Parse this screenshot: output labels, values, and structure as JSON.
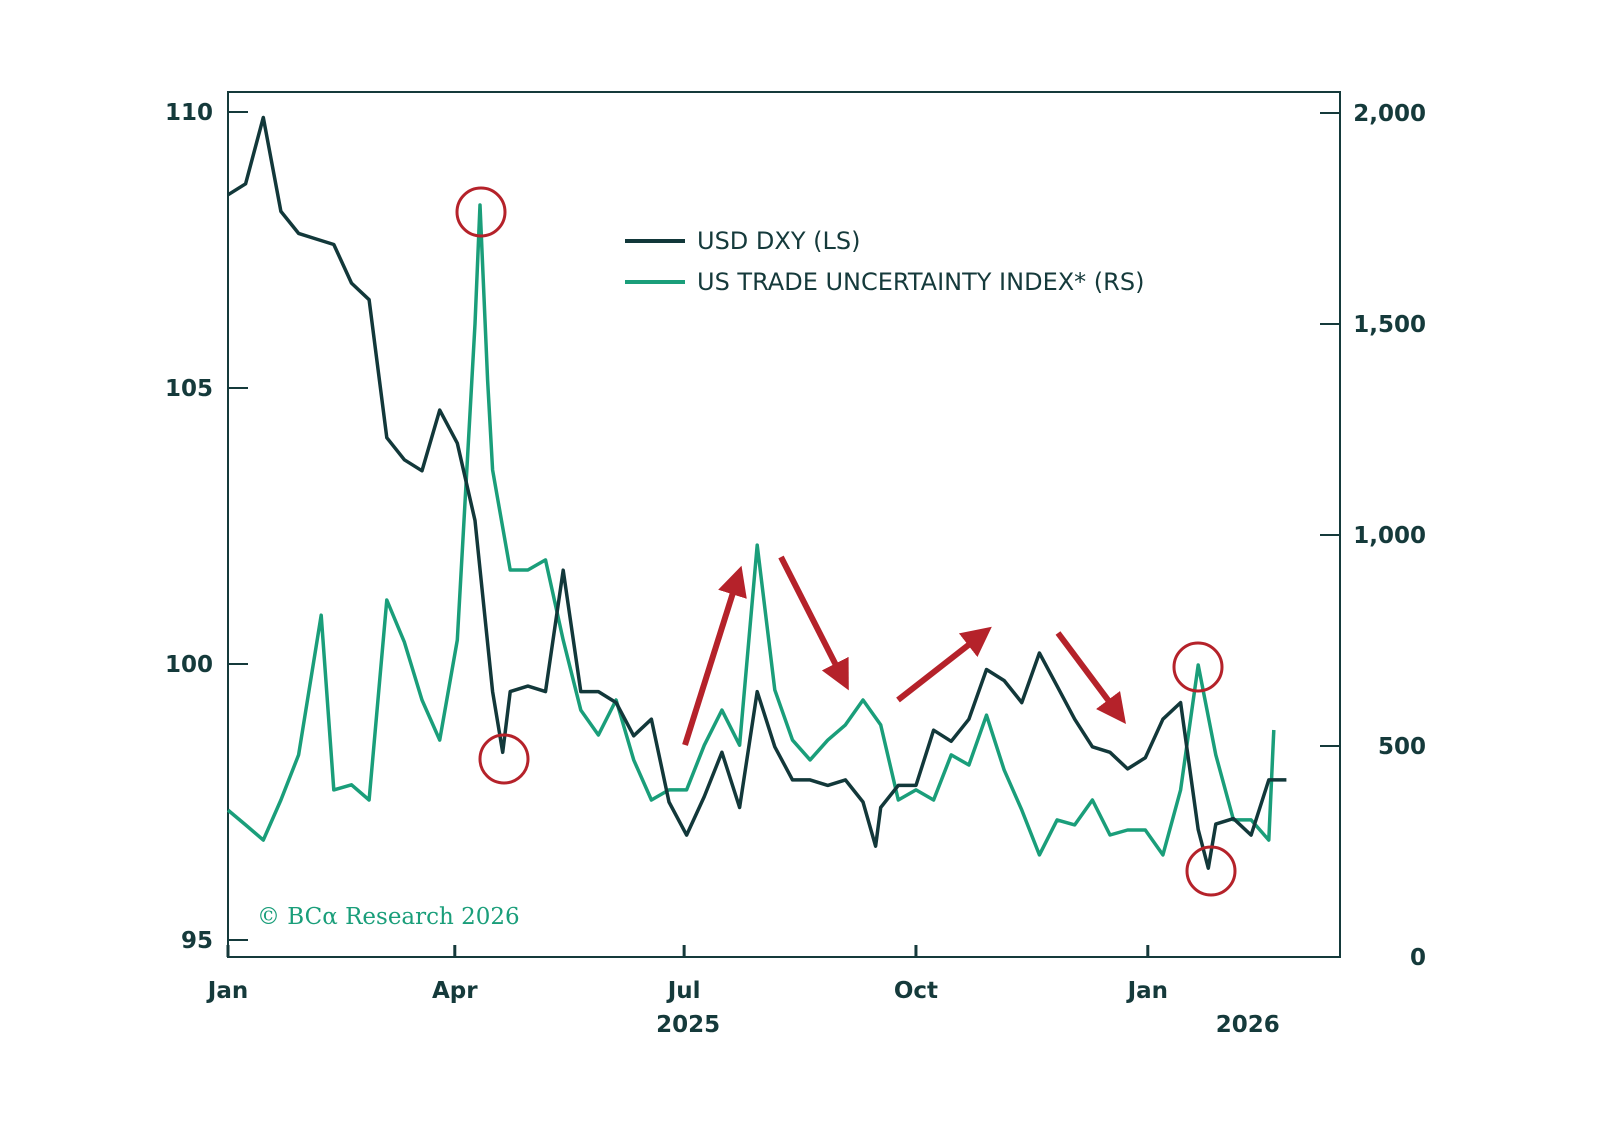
{
  "chart_data": {
    "type": "line",
    "colors": {
      "dxy": "#12383a",
      "trade": "#1a9e7a",
      "annotation": "#b5222a",
      "axis": "#153a3b"
    },
    "legend": {
      "placement": "top-center",
      "entries": [
        "USD DXY (LS)",
        "US TRADE UNCERTAINTY INDEX* (RS)"
      ]
    },
    "watermark": "© BCα Research 2026",
    "left_axis": {
      "range": [
        95,
        110
      ],
      "ticks": [
        95,
        100,
        105,
        110
      ],
      "tick_labels": [
        "95",
        "100",
        "105",
        "110"
      ]
    },
    "right_axis": {
      "range": [
        0,
        2000
      ],
      "ticks": [
        0,
        500,
        1000,
        1500,
        2000
      ],
      "tick_labels": [
        "0",
        "500",
        "1,000",
        "1,500",
        "2,000"
      ]
    },
    "x_axis": {
      "range": [
        "2025-01-01",
        "2026-03-01"
      ],
      "ticks": [
        {
          "date": "2025-01-01",
          "label": "Jan",
          "year": ""
        },
        {
          "date": "2025-04-01",
          "label": "Apr",
          "year": ""
        },
        {
          "date": "2025-07-01",
          "label": "Jul",
          "year": "2025"
        },
        {
          "date": "2025-10-01",
          "label": "Oct",
          "year": ""
        },
        {
          "date": "2026-01-01",
          "label": "Jan",
          "year": "2026"
        }
      ]
    },
    "grid": false,
    "series": [
      {
        "name": "USD DXY (LS)",
        "axis": "left",
        "points": [
          [
            "2025-01-01",
            108.5
          ],
          [
            "2025-01-08",
            108.7
          ],
          [
            "2025-01-15",
            109.9
          ],
          [
            "2025-01-22",
            108.2
          ],
          [
            "2025-01-29",
            107.8
          ],
          [
            "2025-02-05",
            107.7
          ],
          [
            "2025-02-12",
            107.6
          ],
          [
            "2025-02-19",
            106.9
          ],
          [
            "2025-02-26",
            106.6
          ],
          [
            "2025-03-05",
            104.1
          ],
          [
            "2025-03-12",
            103.7
          ],
          [
            "2025-03-19",
            103.5
          ],
          [
            "2025-03-26",
            104.6
          ],
          [
            "2025-04-02",
            104.0
          ],
          [
            "2025-04-09",
            102.6
          ],
          [
            "2025-04-16",
            99.5
          ],
          [
            "2025-04-20",
            98.4
          ],
          [
            "2025-04-23",
            99.5
          ],
          [
            "2025-04-30",
            99.6
          ],
          [
            "2025-05-07",
            99.5
          ],
          [
            "2025-05-14",
            101.7
          ],
          [
            "2025-05-21",
            99.5
          ],
          [
            "2025-05-28",
            99.5
          ],
          [
            "2025-06-04",
            99.3
          ],
          [
            "2025-06-11",
            98.7
          ],
          [
            "2025-06-18",
            99.0
          ],
          [
            "2025-06-25",
            97.5
          ],
          [
            "2025-07-02",
            96.9
          ],
          [
            "2025-07-09",
            97.6
          ],
          [
            "2025-07-16",
            98.4
          ],
          [
            "2025-07-23",
            97.4
          ],
          [
            "2025-07-30",
            99.5
          ],
          [
            "2025-08-06",
            98.5
          ],
          [
            "2025-08-13",
            97.9
          ],
          [
            "2025-08-20",
            97.9
          ],
          [
            "2025-08-27",
            97.8
          ],
          [
            "2025-09-03",
            97.9
          ],
          [
            "2025-09-10",
            97.5
          ],
          [
            "2025-09-15",
            96.7
          ],
          [
            "2025-09-17",
            97.4
          ],
          [
            "2025-09-24",
            97.8
          ],
          [
            "2025-10-01",
            97.8
          ],
          [
            "2025-10-08",
            98.8
          ],
          [
            "2025-10-15",
            98.6
          ],
          [
            "2025-10-22",
            99.0
          ],
          [
            "2025-10-29",
            99.9
          ],
          [
            "2025-11-05",
            99.7
          ],
          [
            "2025-11-12",
            99.3
          ],
          [
            "2025-11-19",
            100.2
          ],
          [
            "2025-11-26",
            99.6
          ],
          [
            "2025-12-03",
            99.0
          ],
          [
            "2025-12-10",
            98.5
          ],
          [
            "2025-12-17",
            98.4
          ],
          [
            "2025-12-24",
            98.1
          ],
          [
            "2025-12-31",
            98.3
          ],
          [
            "2026-01-07",
            99.0
          ],
          [
            "2026-01-14",
            99.3
          ],
          [
            "2026-01-21",
            97.0
          ],
          [
            "2026-01-25",
            96.3
          ],
          [
            "2026-01-28",
            97.1
          ],
          [
            "2026-02-04",
            97.2
          ],
          [
            "2026-02-11",
            96.9
          ],
          [
            "2026-02-18",
            97.9
          ],
          [
            "2026-02-25",
            97.9
          ]
        ]
      },
      {
        "name": "US TRADE UNCERTAINTY INDEX* (RS)",
        "axis": "right",
        "points": [
          [
            "2025-01-01",
            348
          ],
          [
            "2025-01-08",
            313
          ],
          [
            "2025-01-15",
            277
          ],
          [
            "2025-01-22",
            372
          ],
          [
            "2025-01-29",
            479
          ],
          [
            "2025-02-07",
            810
          ],
          [
            "2025-02-12",
            396
          ],
          [
            "2025-02-19",
            408
          ],
          [
            "2025-02-26",
            372
          ],
          [
            "2025-03-05",
            846
          ],
          [
            "2025-03-12",
            746
          ],
          [
            "2025-03-19",
            609
          ],
          [
            "2025-03-26",
            514
          ],
          [
            "2025-04-02",
            751
          ],
          [
            "2025-04-09",
            1500
          ],
          [
            "2025-04-11",
            1782
          ],
          [
            "2025-04-14",
            1367
          ],
          [
            "2025-04-16",
            1154
          ],
          [
            "2025-04-23",
            917
          ],
          [
            "2025-04-30",
            917
          ],
          [
            "2025-05-07",
            941
          ],
          [
            "2025-05-14",
            751
          ],
          [
            "2025-05-21",
            585
          ],
          [
            "2025-05-28",
            526
          ],
          [
            "2025-06-04",
            609
          ],
          [
            "2025-06-11",
            467
          ],
          [
            "2025-06-18",
            372
          ],
          [
            "2025-06-25",
            396
          ],
          [
            "2025-07-02",
            396
          ],
          [
            "2025-07-09",
            502
          ],
          [
            "2025-07-16",
            585
          ],
          [
            "2025-07-23",
            502
          ],
          [
            "2025-07-30",
            976
          ],
          [
            "2025-08-06",
            633
          ],
          [
            "2025-08-13",
            514
          ],
          [
            "2025-08-20",
            467
          ],
          [
            "2025-08-27",
            514
          ],
          [
            "2025-09-03",
            550
          ],
          [
            "2025-09-10",
            609
          ],
          [
            "2025-09-17",
            550
          ],
          [
            "2025-09-24",
            372
          ],
          [
            "2025-10-01",
            396
          ],
          [
            "2025-10-08",
            372
          ],
          [
            "2025-10-15",
            479
          ],
          [
            "2025-10-22",
            455
          ],
          [
            "2025-10-29",
            573
          ],
          [
            "2025-11-05",
            443
          ],
          [
            "2025-11-12",
            348
          ],
          [
            "2025-11-19",
            242
          ],
          [
            "2025-11-26",
            325
          ],
          [
            "2025-12-03",
            313
          ],
          [
            "2025-12-10",
            372
          ],
          [
            "2025-12-17",
            289
          ],
          [
            "2025-12-24",
            301
          ],
          [
            "2025-12-31",
            301
          ],
          [
            "2026-01-07",
            242
          ],
          [
            "2026-01-14",
            396
          ],
          [
            "2026-01-21",
            692
          ],
          [
            "2026-01-28",
            479
          ],
          [
            "2026-02-04",
            325
          ],
          [
            "2026-02-11",
            325
          ],
          [
            "2026-02-18",
            277
          ],
          [
            "2026-02-20",
            538
          ]
        ]
      }
    ]
  }
}
